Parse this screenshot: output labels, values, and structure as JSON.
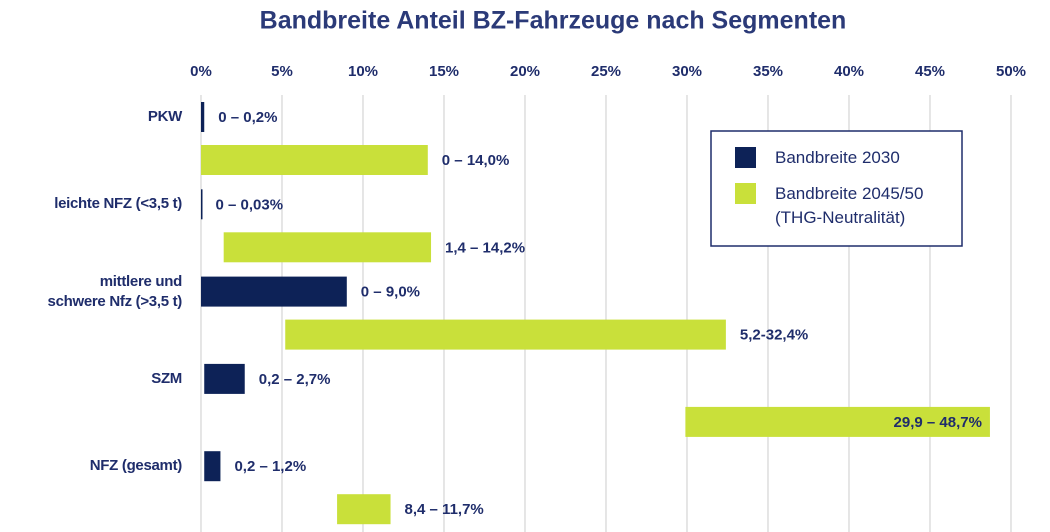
{
  "chart_data": {
    "type": "floating_bar",
    "title": "Bandbreite Anteil BZ-Fahrzeuge nach Segmenten",
    "categories": [
      "PKW",
      "leichte NFZ (<3,5 t)",
      "mittlere und\nschwere Nfz (>3,5 t)",
      "SZM",
      "NFZ (gesamt)"
    ],
    "series": [
      {
        "name": "Bandbreite 2030",
        "color": "#0d2257",
        "low": [
          0,
          0,
          0,
          0.2,
          0.2
        ],
        "high": [
          0.2,
          0.03,
          9.0,
          2.7,
          1.2
        ],
        "value_labels": [
          "0 – 0,2%",
          "0 – 0,03%",
          "0 – 9,0%",
          "0,2 – 2,7%",
          "0,2 – 1,2%"
        ]
      },
      {
        "name": "Bandbreite 2045/50\n(THG-Neutralität)",
        "color": "#c9e03a",
        "low": [
          0,
          1.4,
          5.2,
          29.9,
          8.4
        ],
        "high": [
          14.0,
          14.2,
          32.4,
          48.7,
          11.7
        ],
        "value_labels": [
          "0 – 14,0%",
          "1,4 – 14,2%",
          "5,2-32,4%",
          "29,9 – 48,7%",
          "8,4 – 11,7%"
        ]
      }
    ],
    "xlim": [
      0,
      50
    ],
    "xticks": [
      {
        "value": 0,
        "label": "0%"
      },
      {
        "value": 5,
        "label": "5%"
      },
      {
        "value": 10,
        "label": "10%"
      },
      {
        "value": 15,
        "label": "15%"
      },
      {
        "value": 20,
        "label": "20%"
      },
      {
        "value": 25,
        "label": "25%"
      },
      {
        "value": 30,
        "label": "30%"
      },
      {
        "value": 35,
        "label": "35%"
      },
      {
        "value": 40,
        "label": "40%"
      },
      {
        "value": 45,
        "label": "45%"
      },
      {
        "value": 50,
        "label": "50%"
      }
    ],
    "grid": true
  }
}
